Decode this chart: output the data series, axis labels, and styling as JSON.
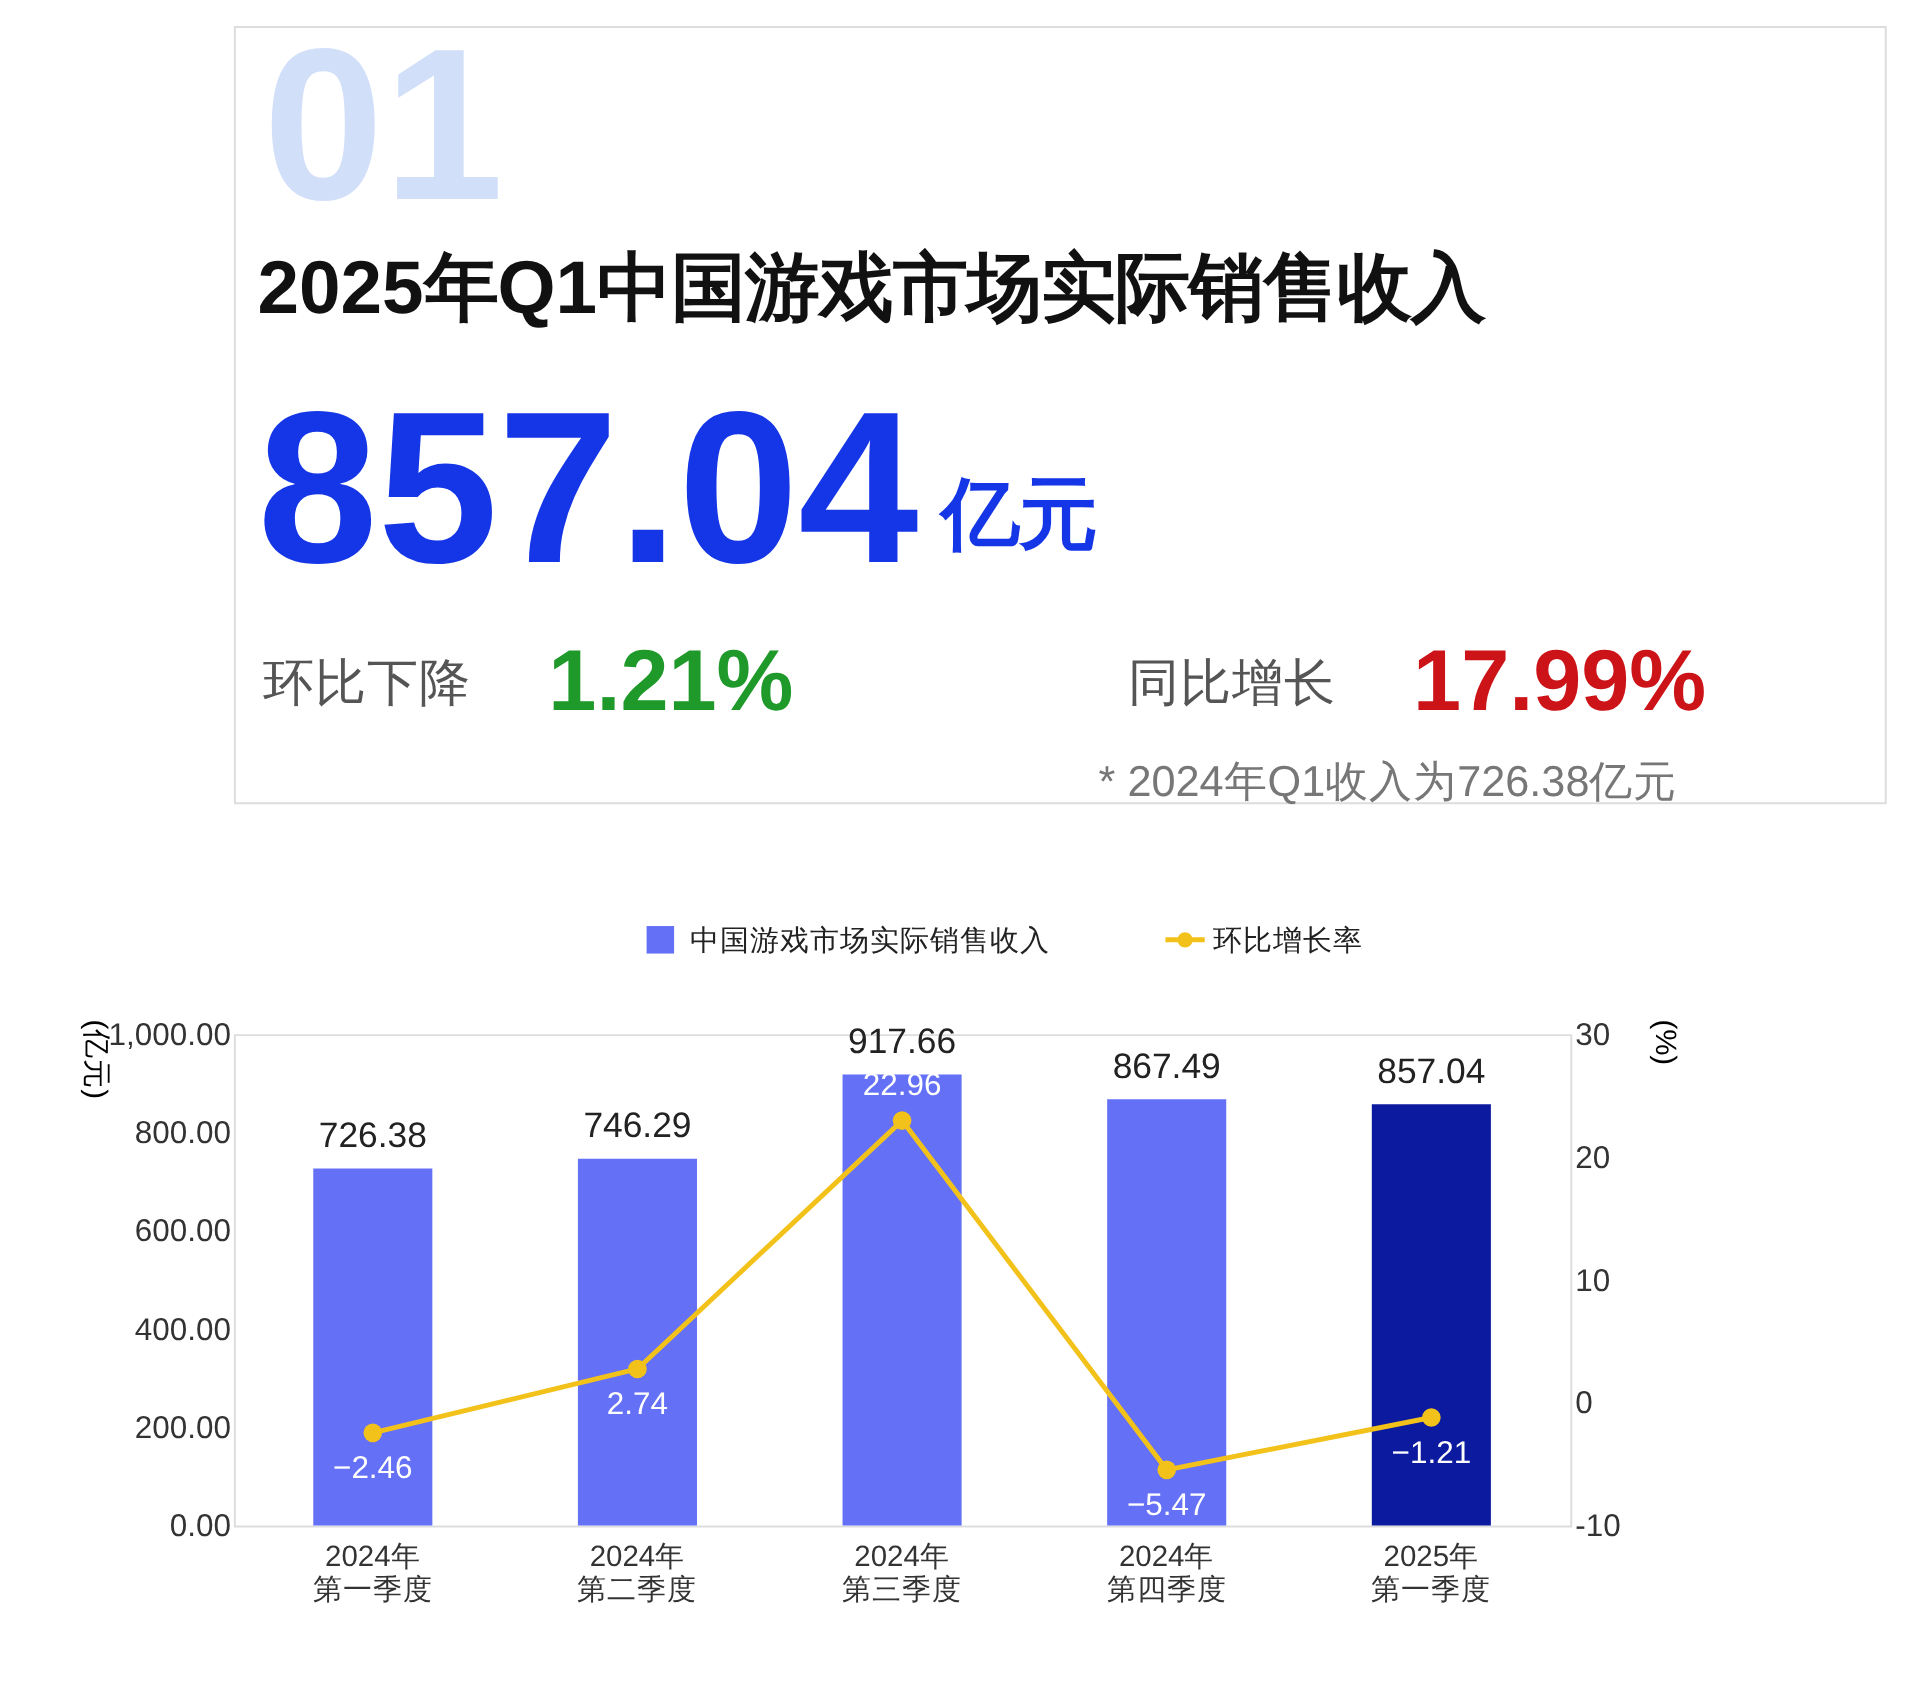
{
  "chart_data": {
    "type": "bar",
    "title": "2025年Q1中国游戏市场实际销售收入",
    "annotations": [
      "01",
      "857.04",
      "亿元",
      "环比下降",
      "1.21%",
      "同比增长",
      "17.99%",
      "* 2024年Q1收入为726.38亿元"
    ],
    "categories": [
      "2024年第一季度",
      "2024年第二季度",
      "2024年第三季度",
      "2024年第四季度",
      "2025年第一季度"
    ],
    "series": [
      {
        "name": "中国游戏市场实际销售收入",
        "color": "#6470f5",
        "colors": [
          "#6470f5",
          "#6470f5",
          "#6470f5",
          "#6470f5",
          "#0b1a9e"
        ],
        "values": [
          726.38,
          746.29,
          917.66,
          867.49,
          857.04
        ]
      },
      {
        "name": "环比增长率",
        "type": "line",
        "axis": "y2",
        "color": "#f2c21b",
        "values": [
          -2.46,
          2.74,
          22.96,
          -5.47,
          -1.21
        ]
      }
    ],
    "ylabel": "(亿元)",
    "y2label": "(%)",
    "ylim": [
      0,
      1000
    ],
    "yticks": [
      {
        "value": 0,
        "label": "0.00"
      },
      {
        "value": 200,
        "label": "200.00"
      },
      {
        "value": 400,
        "label": "400.00"
      },
      {
        "value": 600,
        "label": "600.00"
      },
      {
        "value": 800,
        "label": "800.00"
      },
      {
        "value": 1000,
        "label": "1,000.00"
      }
    ],
    "y2lim": [
      -10,
      30
    ],
    "y2ticks": [
      -10,
      0,
      10,
      20,
      30
    ],
    "data_labels": true,
    "legend": "top",
    "grid": false,
    "marker": "circle",
    "line_style": "solid"
  }
}
